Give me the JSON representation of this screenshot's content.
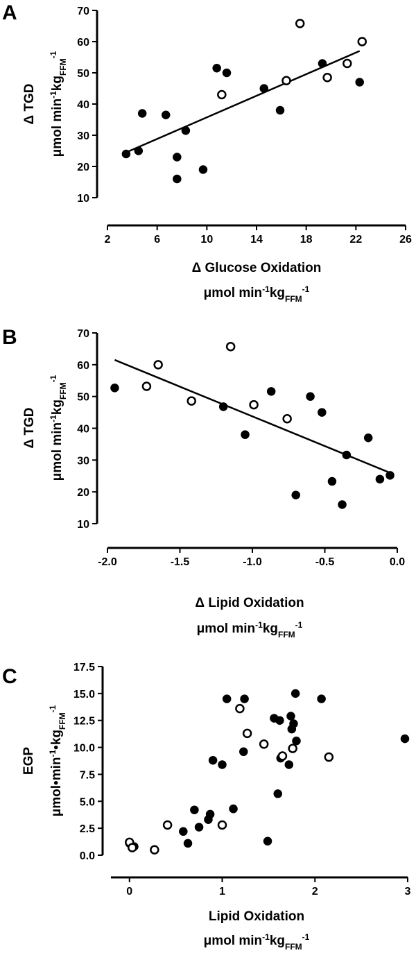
{
  "figure": {
    "panels": [
      {
        "label": "A",
        "xtitle": {
          "main": "Δ Glucose Oxidation",
          "unit_parts": [
            {
              "t": "μmol min",
              "s": "n"
            },
            {
              "t": "-1",
              "s": "u"
            },
            {
              "t": "kg",
              "s": "n"
            },
            {
              "t": "FFM",
              "s": "d"
            },
            {
              "t": "-1",
              "s": "u"
            }
          ]
        },
        "ytitle": {
          "main": "Δ TGD",
          "unit_parts": [
            {
              "t": "μmol min",
              "s": "n"
            },
            {
              "t": "-1",
              "s": "u"
            },
            {
              "t": "kg",
              "s": "n"
            },
            {
              "t": "FFM",
              "s": "d"
            },
            {
              "t": "-1",
              "s": "u"
            }
          ]
        }
      },
      {
        "label": "B",
        "xtitle": {
          "main": "Δ Lipid Oxidation",
          "unit_parts": [
            {
              "t": "μmol min",
              "s": "n"
            },
            {
              "t": "-1",
              "s": "u"
            },
            {
              "t": "kg",
              "s": "n"
            },
            {
              "t": "FFM",
              "s": "d"
            },
            {
              "t": "-1",
              "s": "u"
            }
          ]
        },
        "ytitle": {
          "main": "Δ TGD",
          "unit_parts": [
            {
              "t": "μmol min",
              "s": "n"
            },
            {
              "t": "-1",
              "s": "u"
            },
            {
              "t": "kg",
              "s": "n"
            },
            {
              "t": "FFM",
              "s": "d"
            },
            {
              "t": "-1",
              "s": "u"
            }
          ]
        }
      },
      {
        "label": "C",
        "xtitle": {
          "main": "Lipid Oxidation",
          "unit_parts": [
            {
              "t": "μmol min",
              "s": "n"
            },
            {
              "t": "-1",
              "s": "u"
            },
            {
              "t": "kg",
              "s": "n"
            },
            {
              "t": "FFM",
              "s": "d"
            },
            {
              "t": "-1",
              "s": "u"
            }
          ]
        },
        "ytitle": {
          "main": "EGP",
          "unit_parts": [
            {
              "t": "μmol•min",
              "s": "n"
            },
            {
              "t": "-1",
              "s": "u"
            },
            {
              "t": "•kg",
              "s": "n"
            },
            {
              "t": "FFM",
              "s": "d"
            },
            {
              "t": "-1",
              "s": "u"
            }
          ]
        }
      }
    ]
  },
  "chart_data": [
    {
      "panel": "A",
      "type": "scatter",
      "xlim": [
        2,
        26
      ],
      "ylim": [
        10,
        70
      ],
      "xticks": [
        2,
        6,
        10,
        14,
        18,
        22,
        26
      ],
      "yticks": [
        10,
        20,
        30,
        40,
        50,
        60,
        70
      ],
      "series": [
        {
          "marker": "filled",
          "points": [
            [
              3.5,
              24
            ],
            [
              4.5,
              25
            ],
            [
              4.8,
              37
            ],
            [
              6.7,
              36.5
            ],
            [
              7.6,
              23
            ],
            [
              7.6,
              16
            ],
            [
              8.3,
              31.5
            ],
            [
              9.7,
              19
            ],
            [
              10.8,
              51.5
            ],
            [
              11.6,
              50
            ],
            [
              14.6,
              45
            ],
            [
              15.9,
              38
            ],
            [
              19.3,
              53
            ],
            [
              22.3,
              47
            ]
          ]
        },
        {
          "marker": "open",
          "points": [
            [
              11.2,
              43
            ],
            [
              16.4,
              47.5
            ],
            [
              17.5,
              65.8
            ],
            [
              19.7,
              48.5
            ],
            [
              21.3,
              53
            ],
            [
              22.5,
              60
            ]
          ]
        }
      ],
      "fit_line": {
        "x": [
          3.5,
          22.3
        ],
        "y": [
          24.5,
          57
        ]
      }
    },
    {
      "panel": "B",
      "type": "scatter",
      "xlim": [
        -2.0,
        0.0
      ],
      "ylim": [
        10,
        70
      ],
      "xticks": [
        -2.0,
        -1.5,
        -1.0,
        -0.5,
        0.0
      ],
      "xtick_labels": [
        "-2.0",
        "-1.5",
        "-1.0",
        "-0.5",
        "0.0"
      ],
      "yticks": [
        10,
        20,
        30,
        40,
        50,
        60,
        70
      ],
      "series": [
        {
          "marker": "filled",
          "points": [
            [
              -1.95,
              52.7
            ],
            [
              -1.2,
              46.8
            ],
            [
              -1.05,
              38
            ],
            [
              -0.87,
              51.6
            ],
            [
              -0.7,
              19
            ],
            [
              -0.6,
              50
            ],
            [
              -0.52,
              45
            ],
            [
              -0.45,
              23.3
            ],
            [
              -0.38,
              16
            ],
            [
              -0.35,
              31.6
            ],
            [
              -0.2,
              37
            ],
            [
              -0.12,
              24
            ],
            [
              -0.05,
              25.2
            ]
          ]
        },
        {
          "marker": "open",
          "points": [
            [
              -1.73,
              53.2
            ],
            [
              -1.65,
              60
            ],
            [
              -1.42,
              48.6
            ],
            [
              -1.15,
              65.7
            ],
            [
              -0.99,
              47.4
            ],
            [
              -0.76,
              43
            ]
          ]
        }
      ],
      "fit_line": {
        "x": [
          -1.95,
          -0.05
        ],
        "y": [
          61.5,
          26
        ]
      }
    },
    {
      "panel": "C",
      "type": "scatter",
      "xlim": [
        -0.2,
        3.0
      ],
      "ylim": [
        0.0,
        17.5
      ],
      "xticks": [
        0,
        1,
        2,
        3
      ],
      "yticks": [
        0.0,
        2.5,
        5.0,
        7.5,
        10.0,
        12.5,
        15.0,
        17.5
      ],
      "ytick_labels": [
        "0.0",
        "2.5",
        "5.0",
        "7.5",
        "10.0",
        "12.5",
        "15.0",
        "17.5"
      ],
      "series": [
        {
          "marker": "filled",
          "points": [
            [
              0.0,
              1.1
            ],
            [
              0.05,
              0.8
            ],
            [
              0.58,
              2.2
            ],
            [
              0.63,
              1.1
            ],
            [
              0.7,
              4.2
            ],
            [
              0.75,
              2.6
            ],
            [
              0.85,
              3.3
            ],
            [
              0.87,
              3.8
            ],
            [
              0.9,
              8.8
            ],
            [
              1.0,
              8.4
            ],
            [
              1.05,
              14.5
            ],
            [
              1.12,
              4.3
            ],
            [
              1.23,
              9.6
            ],
            [
              1.24,
              14.5
            ],
            [
              1.49,
              1.3
            ],
            [
              1.56,
              12.7
            ],
            [
              1.6,
              5.7
            ],
            [
              1.62,
              12.5
            ],
            [
              1.63,
              9.0
            ],
            [
              1.72,
              8.4
            ],
            [
              1.74,
              12.9
            ],
            [
              1.75,
              11.7
            ],
            [
              1.77,
              12.2
            ],
            [
              1.79,
              15.0
            ],
            [
              1.8,
              10.6
            ],
            [
              2.07,
              14.5
            ],
            [
              2.97,
              10.8
            ]
          ]
        },
        {
          "marker": "open",
          "points": [
            [
              0.0,
              1.2
            ],
            [
              0.03,
              0.7
            ],
            [
              0.27,
              0.5
            ],
            [
              0.41,
              2.8
            ],
            [
              1.0,
              2.8
            ],
            [
              1.19,
              13.6
            ],
            [
              1.27,
              11.3
            ],
            [
              1.45,
              10.3
            ],
            [
              1.65,
              9.2
            ],
            [
              1.76,
              9.9
            ],
            [
              2.15,
              9.1
            ]
          ]
        }
      ]
    }
  ]
}
